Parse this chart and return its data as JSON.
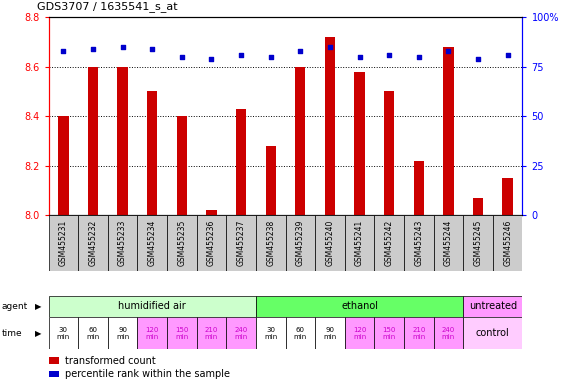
{
  "title": "GDS3707 / 1635541_s_at",
  "samples": [
    "GSM455231",
    "GSM455232",
    "GSM455233",
    "GSM455234",
    "GSM455235",
    "GSM455236",
    "GSM455237",
    "GSM455238",
    "GSM455239",
    "GSM455240",
    "GSM455241",
    "GSM455242",
    "GSM455243",
    "GSM455244",
    "GSM455245",
    "GSM455246"
  ],
  "bar_values": [
    8.4,
    8.6,
    8.6,
    8.5,
    8.4,
    8.02,
    8.43,
    8.28,
    8.6,
    8.72,
    8.58,
    8.5,
    8.22,
    8.68,
    8.07,
    8.15
  ],
  "dot_values": [
    83,
    84,
    85,
    84,
    80,
    79,
    81,
    80,
    83,
    85,
    80,
    81,
    80,
    83,
    79,
    81
  ],
  "ylim_left": [
    8.0,
    8.8
  ],
  "ylim_right": [
    0,
    100
  ],
  "yticks_left": [
    8.0,
    8.2,
    8.4,
    8.6,
    8.8
  ],
  "yticks_right": [
    0,
    25,
    50,
    75,
    100
  ],
  "bar_color": "#cc0000",
  "dot_color": "#0000cc",
  "agent_groups": [
    {
      "label": "humidified air",
      "start": 0,
      "end": 7,
      "color": "#ccffcc"
    },
    {
      "label": "ethanol",
      "start": 7,
      "end": 14,
      "color": "#66ff66"
    },
    {
      "label": "untreated",
      "start": 14,
      "end": 16,
      "color": "#ff99ff"
    }
  ],
  "time_labels": [
    "30\nmin",
    "60\nmin",
    "90\nmin",
    "120\nmin",
    "150\nmin",
    "210\nmin",
    "240\nmin",
    "30\nmin",
    "60\nmin",
    "90\nmin",
    "120\nmin",
    "150\nmin",
    "210\nmin",
    "240\nmin"
  ],
  "time_colors_white": [
    0,
    1,
    2,
    7,
    8,
    9
  ],
  "time_colors_pink": [
    3,
    4,
    5,
    6,
    10,
    11,
    12,
    13
  ],
  "time_pink_color": "#ff99ff",
  "time_white_color": "#ffffff",
  "control_label": "control",
  "control_color": "#ffccff",
  "legend_items": [
    {
      "label": "transformed count",
      "color": "#cc0000"
    },
    {
      "label": "percentile rank within the sample",
      "color": "#0000cc"
    }
  ],
  "background_color": "#ffffff",
  "sample_box_color": "#cccccc",
  "bar_width": 0.35
}
